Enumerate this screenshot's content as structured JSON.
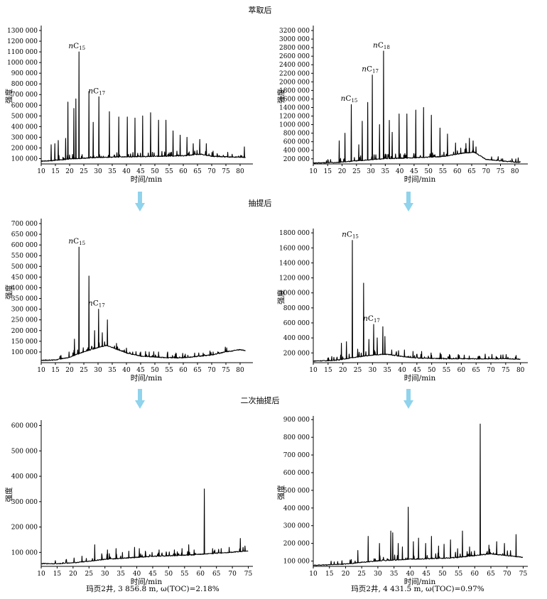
{
  "row_labels": [
    "萃取后",
    "抽提后",
    "二次抽提后"
  ],
  "captions": {
    "left": "玛页2井, 3 856.8 m, ω(TOC)=2.18%",
    "right": "玛页2井, 4 431.5 m, ω(TOC)=0.97%"
  },
  "colors": {
    "trace": "#000000",
    "arrow": "#8fd3ec"
  },
  "chart_data": [
    {
      "id": "A1",
      "type": "line",
      "xlabel": "时间/min",
      "ylabel": "强度",
      "xlim": [
        10,
        84
      ],
      "ylim": [
        50000,
        1320000
      ],
      "xticks": [
        10,
        15,
        20,
        25,
        30,
        35,
        40,
        45,
        50,
        55,
        60,
        65,
        70,
        75,
        80
      ],
      "yticks": [
        100000,
        200000,
        300000,
        400000,
        500000,
        600000,
        700000,
        800000,
        900000,
        1000000,
        1100000,
        1200000,
        1300000
      ],
      "yticklabels": [
        "100 000",
        "200 000",
        "300 000",
        "400 000",
        "500 000",
        "600 000",
        "700 000",
        "800 000",
        "900 000",
        "1000 000",
        "1100 000",
        "1200 000",
        "1300 000"
      ],
      "baseline": [
        [
          10,
          75000
        ],
        [
          14,
          80000
        ],
        [
          20,
          95000
        ],
        [
          30,
          110000
        ],
        [
          40,
          115000
        ],
        [
          50,
          120000
        ],
        [
          60,
          125000
        ],
        [
          66,
          140000
        ],
        [
          70,
          120000
        ],
        [
          75,
          115000
        ],
        [
          82,
          110000
        ]
      ],
      "peaks": [
        [
          13.5,
          230000
        ],
        [
          14.8,
          240000
        ],
        [
          16,
          270000
        ],
        [
          18.6,
          290000
        ],
        [
          19.4,
          630000
        ],
        [
          21.5,
          570000
        ],
        [
          22.2,
          660000
        ],
        [
          23.3,
          1100000
        ],
        [
          26.8,
          730000
        ],
        [
          28.3,
          440000
        ],
        [
          30.3,
          680000
        ],
        [
          34,
          540000
        ],
        [
          37.3,
          490000
        ],
        [
          40.3,
          490000
        ],
        [
          43,
          480000
        ],
        [
          45.7,
          500000
        ],
        [
          48.5,
          530000
        ],
        [
          51.3,
          460000
        ],
        [
          53.9,
          460000
        ],
        [
          56.4,
          360000
        ],
        [
          58.9,
          320000
        ],
        [
          61.3,
          300000
        ],
        [
          63.5,
          240000
        ],
        [
          65.8,
          280000
        ],
        [
          68.1,
          240000
        ],
        [
          70.5,
          170000
        ],
        [
          81.5,
          210000
        ]
      ],
      "annotations": [
        {
          "text": "nC15",
          "x": 23.3,
          "y": 1100000
        },
        {
          "text": "nC17",
          "x": 30.3,
          "y": 680000
        }
      ]
    },
    {
      "id": "A2",
      "type": "line",
      "xlabel": "时间/min",
      "ylabel": "强度",
      "xlim": [
        10,
        84
      ],
      "ylim": [
        80000,
        3250000
      ],
      "xticks": [
        10,
        15,
        20,
        25,
        30,
        35,
        40,
        45,
        50,
        55,
        60,
        65,
        70,
        75,
        80
      ],
      "yticks": [
        200000,
        400000,
        600000,
        800000,
        1000000,
        1200000,
        1400000,
        1600000,
        1800000,
        2000000,
        2200000,
        2400000,
        2600000,
        2800000,
        3000000,
        3200000
      ],
      "yticklabels": [
        "200 000",
        "400 000",
        "600 000",
        "800 000",
        "1000 000",
        "1200 000",
        "1400 000",
        "1600 000",
        "1800 000",
        "2000 000",
        "2200 000",
        "2400 000",
        "2600 000",
        "2800 000",
        "3000 000",
        "3200 000"
      ],
      "baseline": [
        [
          10,
          100000
        ],
        [
          18,
          110000
        ],
        [
          25,
          150000
        ],
        [
          35,
          200000
        ],
        [
          45,
          220000
        ],
        [
          55,
          250000
        ],
        [
          62,
          330000
        ],
        [
          66,
          350000
        ],
        [
          70,
          180000
        ],
        [
          80,
          120000
        ],
        [
          82,
          110000
        ]
      ],
      "peaks": [
        [
          19,
          620000
        ],
        [
          21,
          800000
        ],
        [
          23.2,
          1470000
        ],
        [
          25.8,
          530000
        ],
        [
          27,
          1080000
        ],
        [
          28.9,
          1520000
        ],
        [
          30.5,
          2160000
        ],
        [
          33,
          1000000
        ],
        [
          34.4,
          2720000
        ],
        [
          36.4,
          1100000
        ],
        [
          37.4,
          820000
        ],
        [
          39.8,
          1250000
        ],
        [
          42.5,
          1250000
        ],
        [
          45.6,
          1340000
        ],
        [
          48.3,
          1400000
        ],
        [
          51,
          1220000
        ],
        [
          54,
          920000
        ],
        [
          56.6,
          780000
        ],
        [
          59.4,
          570000
        ],
        [
          61.2,
          450000
        ],
        [
          63,
          560000
        ],
        [
          64.2,
          680000
        ],
        [
          65.5,
          620000
        ],
        [
          66.5,
          480000
        ]
      ],
      "annotations": [
        {
          "text": "nC15",
          "x": 23.2,
          "y": 1470000
        },
        {
          "text": "nC17",
          "x": 30.5,
          "y": 2160000
        },
        {
          "text": "nC18",
          "x": 34.4,
          "y": 2720000
        }
      ]
    },
    {
      "id": "B1",
      "type": "line",
      "xlabel": "时间/min",
      "ylabel": "强度",
      "xlim": [
        10,
        84
      ],
      "ylim": [
        50000,
        710000
      ],
      "xticks": [
        10,
        15,
        20,
        25,
        30,
        35,
        40,
        45,
        50,
        55,
        60,
        65,
        70,
        75,
        80
      ],
      "yticks": [
        100000,
        150000,
        200000,
        250000,
        300000,
        350000,
        400000,
        450000,
        500000,
        550000,
        600000,
        650000,
        700000
      ],
      "yticklabels": [
        "100 000",
        "150 000",
        "200 000",
        "250 000",
        "300 000",
        "350 000",
        "400 000",
        "450 000",
        "500 000",
        "550 000",
        "600 000",
        "650 000",
        "700 000"
      ],
      "baseline": [
        [
          10,
          60000
        ],
        [
          15,
          62000
        ],
        [
          20,
          75000
        ],
        [
          25,
          100000
        ],
        [
          30,
          120000
        ],
        [
          33,
          130000
        ],
        [
          36,
          115000
        ],
        [
          40,
          95000
        ],
        [
          45,
          80000
        ],
        [
          55,
          72000
        ],
        [
          60,
          72000
        ],
        [
          70,
          85000
        ],
        [
          75,
          100000
        ],
        [
          80,
          110000
        ],
        [
          82,
          105000
        ]
      ],
      "peaks": [
        [
          19.8,
          100000
        ],
        [
          21.7,
          160000
        ],
        [
          23.3,
          590000
        ],
        [
          24.8,
          120000
        ],
        [
          26.8,
          455000
        ],
        [
          28.8,
          200000
        ],
        [
          30.2,
          300000
        ],
        [
          31.5,
          190000
        ],
        [
          33.3,
          250000
        ],
        [
          36.5,
          140000
        ],
        [
          39.3,
          110000
        ],
        [
          42.2,
          100000
        ],
        [
          45,
          100000
        ],
        [
          48,
          100000
        ],
        [
          51.3,
          100000
        ],
        [
          54.5,
          100000
        ],
        [
          57.4,
          95000
        ],
        [
          60.7,
          90000
        ],
        [
          64,
          95000
        ],
        [
          67,
          95000
        ],
        [
          70.5,
          100000
        ]
      ],
      "annotations": [
        {
          "text": "nC15",
          "x": 23.3,
          "y": 590000
        },
        {
          "text": "nC17",
          "x": 30.2,
          "y": 300000
        }
      ]
    },
    {
      "id": "B2",
      "type": "line",
      "xlabel": "时间/min",
      "ylabel": "强度",
      "xlim": [
        10,
        82
      ],
      "ylim": [
        70000,
        1820000
      ],
      "xticks": [
        10,
        15,
        20,
        25,
        30,
        35,
        40,
        45,
        50,
        55,
        60,
        65,
        70,
        75,
        80
      ],
      "yticks": [
        200000,
        400000,
        600000,
        800000,
        1000000,
        1200000,
        1400000,
        1600000,
        1800000
      ],
      "yticklabels": [
        "200 000",
        "400 000",
        "600 000",
        "800 000",
        "1000 000",
        "1200 000",
        "1400 000",
        "1600 000",
        "1800 000"
      ],
      "baseline": [
        [
          10,
          90000
        ],
        [
          18,
          100000
        ],
        [
          24,
          140000
        ],
        [
          30,
          170000
        ],
        [
          35,
          180000
        ],
        [
          40,
          150000
        ],
        [
          45,
          130000
        ],
        [
          55,
          120000
        ],
        [
          65,
          120000
        ],
        [
          75,
          120000
        ],
        [
          80,
          115000
        ]
      ],
      "peaks": [
        [
          19.5,
          330000
        ],
        [
          21.2,
          350000
        ],
        [
          23.2,
          1700000
        ],
        [
          25,
          250000
        ],
        [
          27,
          1130000
        ],
        [
          28.8,
          380000
        ],
        [
          30.4,
          580000
        ],
        [
          31.6,
          400000
        ],
        [
          33.5,
          550000
        ],
        [
          34.2,
          420000
        ],
        [
          36.5,
          240000
        ],
        [
          38.8,
          230000
        ],
        [
          40.8,
          240000
        ],
        [
          43.7,
          220000
        ],
        [
          46.6,
          220000
        ],
        [
          49.8,
          200000
        ],
        [
          52.9,
          200000
        ],
        [
          56,
          180000
        ],
        [
          59,
          180000
        ],
        [
          62.7,
          160000
        ],
        [
          66,
          160000
        ],
        [
          69.3,
          150000
        ]
      ],
      "annotations": [
        {
          "text": "nC15",
          "x": 23.2,
          "y": 1700000
        },
        {
          "text": "nC17",
          "x": 30.4,
          "y": 580000
        }
      ]
    },
    {
      "id": "C1",
      "type": "line",
      "xlabel": "时间/min",
      "ylabel": "强度",
      "xlim": [
        10,
        76
      ],
      "ylim": [
        45000,
        610000
      ],
      "xticks": [
        10,
        15,
        20,
        25,
        30,
        35,
        40,
        45,
        50,
        55,
        60,
        65,
        70,
        75
      ],
      "yticks": [
        100000,
        200000,
        300000,
        400000,
        500000,
        600000
      ],
      "yticklabels": [
        "100 000",
        "200 000",
        "300 000",
        "400 000",
        "500 000",
        "600 000"
      ],
      "baseline": [
        [
          10,
          55000
        ],
        [
          15,
          55000
        ],
        [
          20,
          58000
        ],
        [
          25,
          65000
        ],
        [
          30,
          72000
        ],
        [
          35,
          76000
        ],
        [
          40,
          80000
        ],
        [
          45,
          84000
        ],
        [
          50,
          86000
        ],
        [
          55,
          88000
        ],
        [
          60,
          92000
        ],
        [
          65,
          96000
        ],
        [
          70,
          100000
        ],
        [
          75,
          105000
        ]
      ],
      "peaks": [
        [
          22.8,
          85000
        ],
        [
          26.8,
          130000
        ],
        [
          29,
          95000
        ],
        [
          30.8,
          110000
        ],
        [
          33.5,
          115000
        ],
        [
          35.5,
          100000
        ],
        [
          37.5,
          105000
        ],
        [
          39.3,
          120000
        ],
        [
          40.8,
          115000
        ],
        [
          42.7,
          105000
        ],
        [
          44.8,
          100000
        ],
        [
          47,
          110000
        ],
        [
          49.3,
          100000
        ],
        [
          51.8,
          110000
        ],
        [
          54.2,
          115000
        ],
        [
          56.3,
          130000
        ],
        [
          58,
          110000
        ],
        [
          61.2,
          350000
        ],
        [
          63.8,
          115000
        ],
        [
          66.5,
          115000
        ],
        [
          69,
          120000
        ],
        [
          72.5,
          155000
        ]
      ],
      "annotations": []
    },
    {
      "id": "C2",
      "type": "line",
      "xlabel": "时间/min",
      "ylabel": "强度",
      "xlim": [
        10,
        76
      ],
      "ylim": [
        70000,
        905000
      ],
      "xticks": [
        10,
        15,
        20,
        25,
        30,
        35,
        40,
        45,
        50,
        55,
        60,
        65,
        70,
        75
      ],
      "yticks": [
        100000,
        200000,
        300000,
        400000,
        500000,
        600000,
        700000,
        800000,
        900000
      ],
      "yticklabels": [
        "100 000",
        "200 000",
        "300 000",
        "400 000",
        "500 000",
        "600 000",
        "700 000",
        "800 000",
        "900 000"
      ],
      "baseline": [
        [
          10,
          75000
        ],
        [
          15,
          78000
        ],
        [
          20,
          82000
        ],
        [
          25,
          92000
        ],
        [
          30,
          100000
        ],
        [
          35,
          105000
        ],
        [
          40,
          110000
        ],
        [
          45,
          112000
        ],
        [
          50,
          115000
        ],
        [
          55,
          120000
        ],
        [
          60,
          130000
        ],
        [
          65,
          140000
        ],
        [
          70,
          130000
        ],
        [
          75,
          120000
        ]
      ],
      "peaks": [
        [
          23.8,
          160000
        ],
        [
          27,
          240000
        ],
        [
          30.5,
          200000
        ],
        [
          34,
          270000
        ],
        [
          34.6,
          260000
        ],
        [
          36.3,
          200000
        ],
        [
          37.6,
          180000
        ],
        [
          39.4,
          405000
        ],
        [
          41,
          210000
        ],
        [
          42.6,
          230000
        ],
        [
          44.8,
          200000
        ],
        [
          46.6,
          240000
        ],
        [
          48.8,
          185000
        ],
        [
          50.5,
          195000
        ],
        [
          52.5,
          220000
        ],
        [
          54.7,
          170000
        ],
        [
          56.2,
          270000
        ],
        [
          58.4,
          180000
        ],
        [
          61.7,
          875000
        ],
        [
          64.4,
          190000
        ],
        [
          66.8,
          210000
        ],
        [
          69.2,
          200000
        ],
        [
          72.8,
          250000
        ]
      ],
      "annotations": []
    }
  ]
}
